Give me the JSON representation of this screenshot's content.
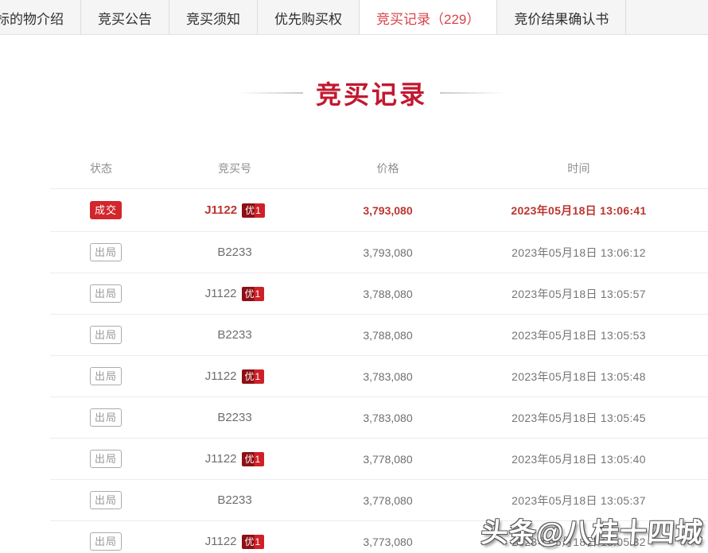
{
  "tabs": {
    "items": [
      {
        "label": "标的物介绍",
        "active": false
      },
      {
        "label": "竞买公告",
        "active": false
      },
      {
        "label": "竞买须知",
        "active": false
      },
      {
        "label": "优先购买权",
        "active": false
      },
      {
        "label": "竞买记录（229）",
        "active": true
      },
      {
        "label": "竞价结果确认书",
        "active": false
      }
    ]
  },
  "section": {
    "title": "竞买记录"
  },
  "table": {
    "headers": [
      "状态",
      "竞买号",
      "价格",
      "时间"
    ],
    "rows": [
      {
        "status": "成交",
        "bidder": "J1122",
        "priority": "优1",
        "price": "3,793,080",
        "time": "2023年05月18日 13:06:41",
        "highlight": true
      },
      {
        "status": "出局",
        "bidder": "B2233",
        "price": "3,793,080",
        "time": "2023年05月18日 13:06:12",
        "highlight": false
      },
      {
        "status": "出局",
        "bidder": "J1122",
        "priority": "优1",
        "price": "3,788,080",
        "time": "2023年05月18日 13:05:57",
        "highlight": false
      },
      {
        "status": "出局",
        "bidder": "B2233",
        "price": "3,788,080",
        "time": "2023年05月18日 13:05:53",
        "highlight": false
      },
      {
        "status": "出局",
        "bidder": "J1122",
        "priority": "优1",
        "price": "3,783,080",
        "time": "2023年05月18日 13:05:48",
        "highlight": false
      },
      {
        "status": "出局",
        "bidder": "B2233",
        "price": "3,783,080",
        "time": "2023年05月18日 13:05:45",
        "highlight": false
      },
      {
        "status": "出局",
        "bidder": "J1122",
        "priority": "优1",
        "price": "3,778,080",
        "time": "2023年05月18日 13:05:40",
        "highlight": false
      },
      {
        "status": "出局",
        "bidder": "B2233",
        "price": "3,778,080",
        "time": "2023年05月18日 13:05:37",
        "highlight": false
      },
      {
        "status": "出局",
        "bidder": "J1122",
        "priority": "优1",
        "price": "3,773,080",
        "time": "2023年05月18日 13:05:32",
        "highlight": false
      }
    ]
  },
  "watermark": {
    "text": "头条@八桂十四城"
  },
  "colors": {
    "title_red": "#c2182f",
    "active_tab_red": "#d8434b",
    "win_badge_red": "#d2262c",
    "winning_row_red": "#bb3530",
    "priority_badge_red": "#ce2127",
    "tabbar_bg": "#f5f5f5",
    "row_divider": "#ececec",
    "muted_text": "#6e6e6e"
  }
}
